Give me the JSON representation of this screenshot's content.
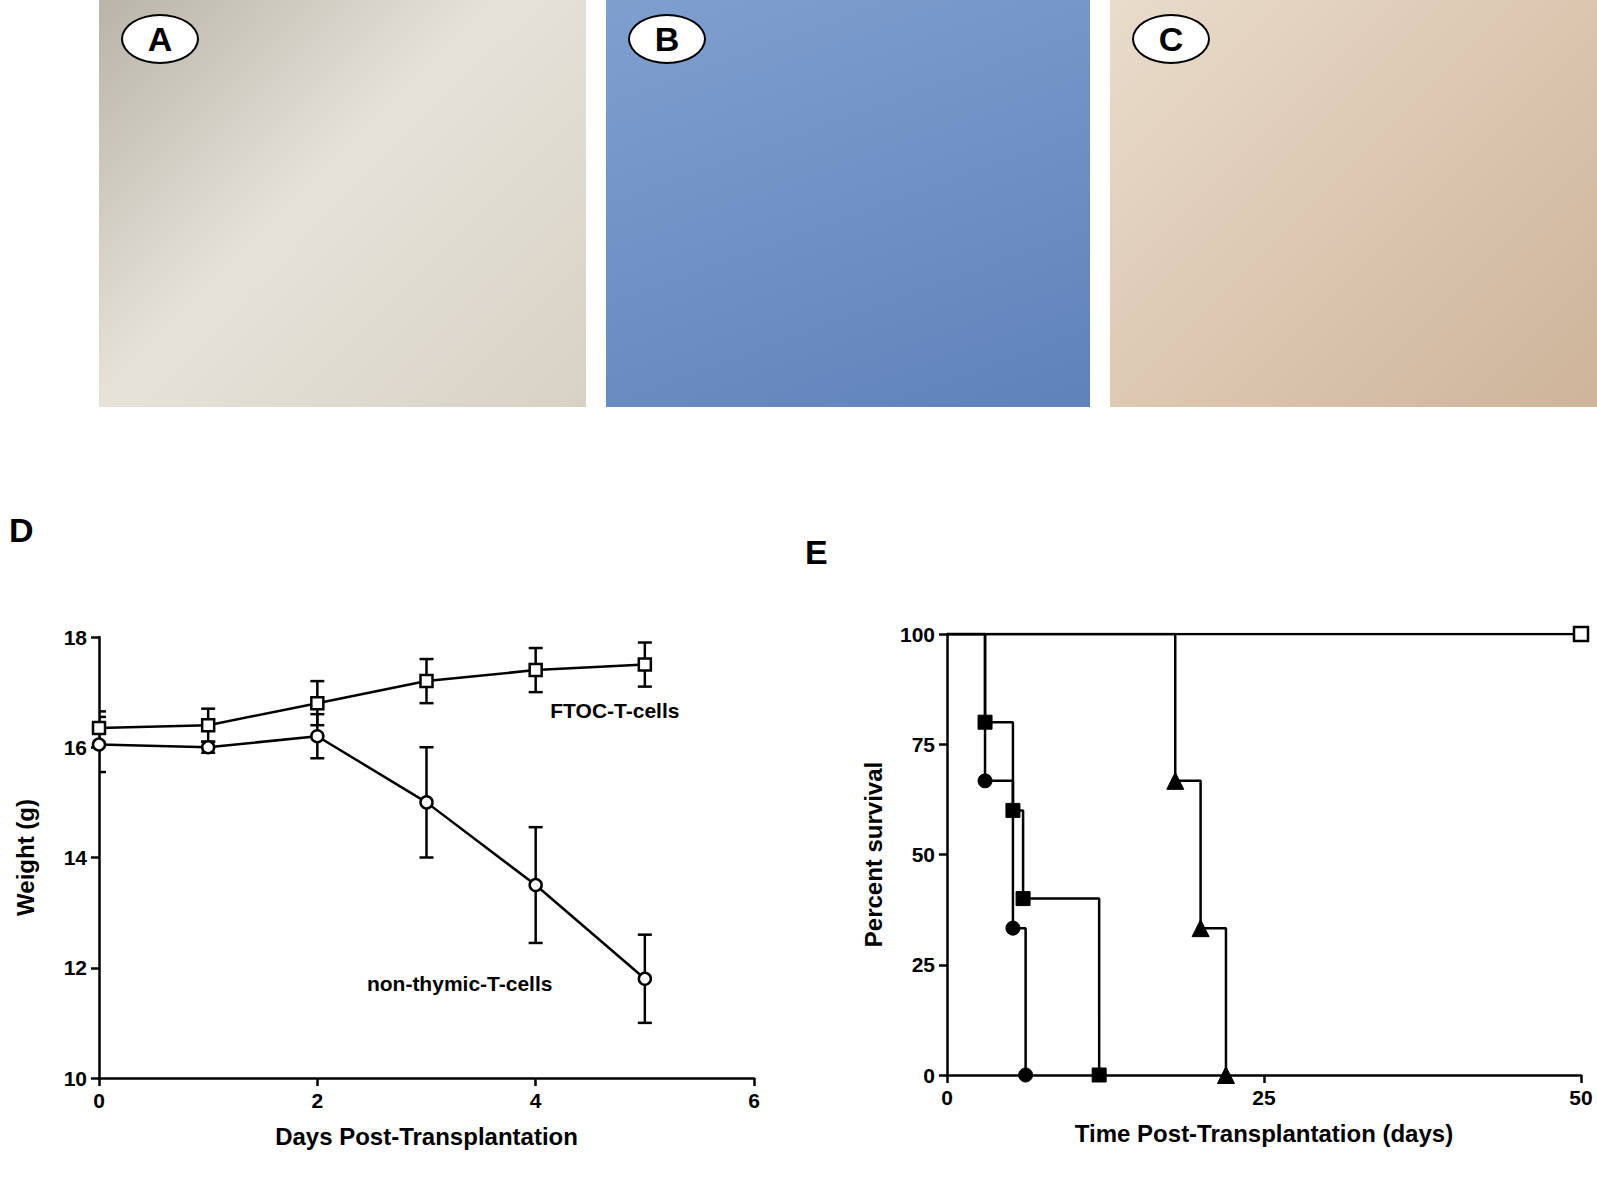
{
  "photos": [
    {
      "label": "A"
    },
    {
      "label": "B"
    },
    {
      "label": "C"
    }
  ],
  "chart_data": [
    {
      "type": "line",
      "title": "D",
      "x_label": "Days Post-Transplantation",
      "y_label": "Weight (g)",
      "xlim": [
        0,
        6
      ],
      "xticks": [
        0,
        2,
        4,
        6
      ],
      "ylim": [
        10,
        18
      ],
      "yticks": [
        10,
        12,
        14,
        16,
        18
      ],
      "grid": false,
      "series": [
        {
          "name": "FTOC-T-cells",
          "color": "#000000",
          "marker": "square-open",
          "x": [
            0,
            1,
            2,
            3,
            4,
            5
          ],
          "values": [
            16.35,
            16.4,
            16.8,
            17.2,
            17.4,
            17.5
          ],
          "errors": [
            0.3,
            0.3,
            0.4,
            0.4,
            0.4,
            0.4
          ]
        },
        {
          "name": "non-thymic-T-cells",
          "color": "#000000",
          "marker": "circle-open",
          "x": [
            0,
            1,
            2,
            3,
            4,
            5
          ],
          "values": [
            16.05,
            16.0,
            16.2,
            15.0,
            13.5,
            11.8
          ],
          "errors": [
            0.5,
            0.1,
            0.4,
            1.0,
            1.05,
            0.8
          ]
        }
      ]
    },
    {
      "type": "step",
      "title": "E",
      "x_label": "Time Post-Transplantation (days)",
      "y_label": "Percent survival",
      "xlim": [
        0,
        50
      ],
      "xticks": [
        0,
        25,
        50
      ],
      "ylim": [
        0,
        100
      ],
      "yticks": [
        0,
        25,
        50,
        75,
        100
      ],
      "grid": false,
      "series": [
        {
          "color": "#000000",
          "marker": "square-open",
          "x": [
            0,
            50
          ],
          "values": [
            100,
            100
          ]
        },
        {
          "color": "#000000",
          "marker": "circle",
          "x": [
            0,
            3,
            5.2,
            6.2
          ],
          "values": [
            100,
            66.7,
            33.3,
            0
          ]
        },
        {
          "color": "#000000",
          "marker": "square",
          "x": [
            0,
            3,
            5.2,
            6,
            12
          ],
          "values": [
            100,
            80,
            60,
            40,
            0
          ]
        },
        {
          "color": "#000000",
          "marker": "triangle",
          "x": [
            0,
            18,
            20,
            22
          ],
          "values": [
            100,
            66.7,
            33.3,
            0
          ]
        }
      ]
    }
  ]
}
